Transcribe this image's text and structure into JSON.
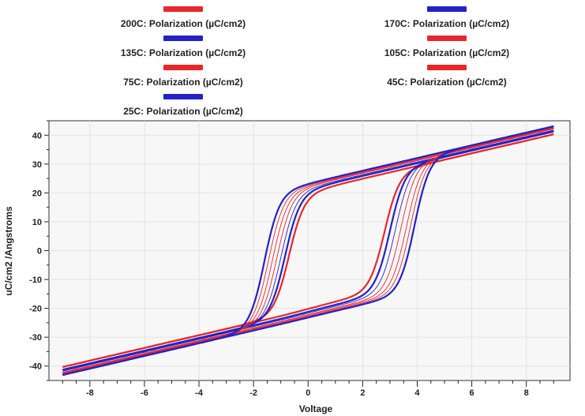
{
  "chart_data": {
    "type": "line",
    "title": "",
    "xlabel": "Voltage",
    "ylabel": "uC/cm2 /Angstroms",
    "xlim": [
      -9.5,
      9.6
    ],
    "ylim": [
      -45,
      45
    ],
    "x_ticks": [
      -8,
      -6,
      -4,
      -2,
      0,
      2,
      4,
      6,
      8
    ],
    "y_ticks": [
      -40,
      -30,
      -20,
      -10,
      0,
      10,
      20,
      30,
      40
    ],
    "grid": true,
    "legend_position": "top",
    "series": [
      {
        "name": "200C: Polarization (µC/cm2)",
        "color": "#e8262b",
        "vc_pos": 2.8,
        "vc_neg": -0.7,
        "slope": 0.8,
        "p_max": 40
      },
      {
        "name": "170C: Polarization (µC/cm2)",
        "color": "#2222c8",
        "vc_pos": 3.0,
        "vc_neg": -0.85,
        "slope": 0.7,
        "p_max": 41
      },
      {
        "name": "135C: Polarization (µC/cm2)",
        "color": "#2222c8",
        "vc_pos": 3.2,
        "vc_neg": -1.0,
        "slope": 0.6,
        "p_max": 41.5
      },
      {
        "name": "105C: Polarization (µC/cm2)",
        "color": "#e8262b",
        "vc_pos": 3.4,
        "vc_neg": -1.15,
        "slope": 0.5,
        "p_max": 42
      },
      {
        "name": "75C: Polarization (µC/cm2)",
        "color": "#e8262b",
        "vc_pos": 3.6,
        "vc_neg": -1.3,
        "slope": 0.4,
        "p_max": 42.3
      },
      {
        "name": "45C: Polarization (µC/cm2)",
        "color": "#e8262b",
        "vc_pos": 3.75,
        "vc_neg": -1.45,
        "slope": 0.32,
        "p_max": 42.6
      },
      {
        "name": "25C: Polarization (µC/cm2)",
        "color": "#2222c8",
        "vc_pos": 3.9,
        "vc_neg": -1.6,
        "slope": 0.25,
        "p_max": 43
      }
    ]
  }
}
